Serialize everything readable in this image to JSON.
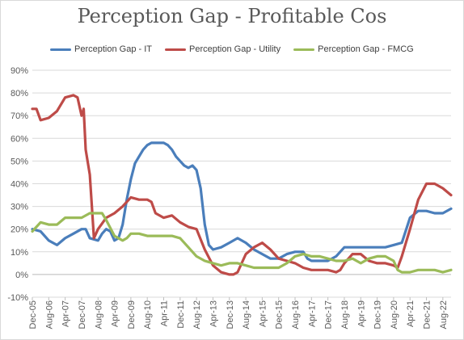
{
  "chart_data": {
    "type": "line",
    "title": "Perception Gap - Profitable Cos",
    "xlabel": "",
    "ylabel": "",
    "ylim": [
      -0.1,
      0.9
    ],
    "y_ticks": [
      "-10%",
      "0%",
      "10%",
      "20%",
      "30%",
      "40%",
      "50%",
      "60%",
      "70%",
      "80%",
      "90%"
    ],
    "x_tick_labels": [
      "Dec-05",
      "Aug-06",
      "Apr-07",
      "Dec-07",
      "Aug-08",
      "Apr-09",
      "Dec-09",
      "Aug-10",
      "Apr-11",
      "Dec-11",
      "Aug-12",
      "Apr-13",
      "Dec-13",
      "Aug-14",
      "Apr-15",
      "Dec-15",
      "Aug-16",
      "Apr-17",
      "Dec-17",
      "Aug-18",
      "Apr-19",
      "Dec-19",
      "Aug-20",
      "Apr-21",
      "Dec-21",
      "Aug-22"
    ],
    "grid": true,
    "legend_position": "top",
    "series": [
      {
        "name": "Perception Gap - IT",
        "color": "#4a7ebb",
        "points": [
          [
            "Dec-05",
            0.2
          ],
          [
            "Apr-06",
            0.19
          ],
          [
            "Aug-06",
            0.15
          ],
          [
            "Dec-06",
            0.13
          ],
          [
            "Apr-07",
            0.16
          ],
          [
            "Aug-07",
            0.18
          ],
          [
            "Dec-07",
            0.2
          ],
          [
            "Feb-08",
            0.2
          ],
          [
            "Apr-08",
            0.16
          ],
          [
            "Aug-08",
            0.15
          ],
          [
            "Oct-08",
            0.18
          ],
          [
            "Dec-08",
            0.2
          ],
          [
            "Feb-09",
            0.19
          ],
          [
            "Apr-09",
            0.15
          ],
          [
            "Jun-09",
            0.16
          ],
          [
            "Aug-09",
            0.22
          ],
          [
            "Oct-09",
            0.33
          ],
          [
            "Dec-09",
            0.42
          ],
          [
            "Feb-10",
            0.49
          ],
          [
            "Apr-10",
            0.52
          ],
          [
            "Jun-10",
            0.55
          ],
          [
            "Aug-10",
            0.57
          ],
          [
            "Oct-10",
            0.58
          ],
          [
            "Dec-10",
            0.58
          ],
          [
            "Apr-11",
            0.58
          ],
          [
            "Jun-11",
            0.57
          ],
          [
            "Aug-11",
            0.55
          ],
          [
            "Oct-11",
            0.52
          ],
          [
            "Dec-11",
            0.5
          ],
          [
            "Feb-12",
            0.48
          ],
          [
            "Apr-12",
            0.47
          ],
          [
            "Jun-12",
            0.48
          ],
          [
            "Aug-12",
            0.46
          ],
          [
            "Oct-12",
            0.38
          ],
          [
            "Dec-12",
            0.22
          ],
          [
            "Feb-13",
            0.13
          ],
          [
            "Apr-13",
            0.11
          ],
          [
            "Aug-13",
            0.12
          ],
          [
            "Dec-13",
            0.14
          ],
          [
            "Apr-14",
            0.16
          ],
          [
            "Aug-14",
            0.14
          ],
          [
            "Dec-14",
            0.11
          ],
          [
            "Apr-15",
            0.09
          ],
          [
            "Aug-15",
            0.07
          ],
          [
            "Dec-15",
            0.07
          ],
          [
            "Apr-16",
            0.09
          ],
          [
            "Aug-16",
            0.1
          ],
          [
            "Dec-16",
            0.1
          ],
          [
            "Feb-17",
            0.07
          ],
          [
            "Apr-17",
            0.06
          ],
          [
            "Aug-17",
            0.06
          ],
          [
            "Dec-17",
            0.06
          ],
          [
            "Apr-18",
            0.08
          ],
          [
            "Aug-18",
            0.12
          ],
          [
            "Dec-18",
            0.12
          ],
          [
            "Apr-19",
            0.12
          ],
          [
            "Aug-19",
            0.12
          ],
          [
            "Dec-19",
            0.12
          ],
          [
            "Apr-20",
            0.12
          ],
          [
            "Aug-20",
            0.13
          ],
          [
            "Dec-20",
            0.14
          ],
          [
            "Apr-21",
            0.25
          ],
          [
            "Aug-21",
            0.28
          ],
          [
            "Dec-21",
            0.28
          ],
          [
            "Apr-22",
            0.27
          ],
          [
            "Aug-22",
            0.27
          ],
          [
            "Dec-22",
            0.29
          ]
        ]
      },
      {
        "name": "Perception Gap - Utility",
        "color": "#be4b48",
        "points": [
          [
            "Dec-05",
            0.73
          ],
          [
            "Feb-06",
            0.73
          ],
          [
            "Apr-06",
            0.68
          ],
          [
            "Aug-06",
            0.69
          ],
          [
            "Dec-06",
            0.72
          ],
          [
            "Apr-07",
            0.78
          ],
          [
            "Aug-07",
            0.79
          ],
          [
            "Oct-07",
            0.78
          ],
          [
            "Dec-07",
            0.7
          ],
          [
            "Jan-08",
            0.73
          ],
          [
            "Feb-08",
            0.55
          ],
          [
            "Apr-08",
            0.44
          ],
          [
            "Jun-08",
            0.16
          ],
          [
            "Aug-08",
            0.2
          ],
          [
            "Dec-08",
            0.25
          ],
          [
            "Apr-09",
            0.27
          ],
          [
            "Aug-09",
            0.3
          ],
          [
            "Dec-09",
            0.34
          ],
          [
            "Apr-10",
            0.33
          ],
          [
            "Aug-10",
            0.33
          ],
          [
            "Oct-10",
            0.32
          ],
          [
            "Dec-10",
            0.27
          ],
          [
            "Apr-11",
            0.25
          ],
          [
            "Aug-11",
            0.26
          ],
          [
            "Dec-11",
            0.23
          ],
          [
            "Apr-12",
            0.21
          ],
          [
            "Aug-12",
            0.2
          ],
          [
            "Dec-12",
            0.11
          ],
          [
            "Apr-13",
            0.04
          ],
          [
            "Aug-13",
            0.01
          ],
          [
            "Dec-13",
            0.0
          ],
          [
            "Feb-14",
            0.0
          ],
          [
            "Apr-14",
            0.01
          ],
          [
            "Aug-14",
            0.09
          ],
          [
            "Dec-14",
            0.12
          ],
          [
            "Apr-15",
            0.14
          ],
          [
            "Aug-15",
            0.11
          ],
          [
            "Dec-15",
            0.07
          ],
          [
            "Apr-16",
            0.06
          ],
          [
            "Aug-16",
            0.05
          ],
          [
            "Dec-16",
            0.03
          ],
          [
            "Apr-17",
            0.02
          ],
          [
            "Aug-17",
            0.02
          ],
          [
            "Dec-17",
            0.02
          ],
          [
            "Apr-18",
            0.01
          ],
          [
            "Jun-18",
            0.02
          ],
          [
            "Aug-18",
            0.05
          ],
          [
            "Dec-18",
            0.09
          ],
          [
            "Apr-19",
            0.09
          ],
          [
            "Aug-19",
            0.06
          ],
          [
            "Dec-19",
            0.05
          ],
          [
            "Apr-20",
            0.05
          ],
          [
            "Aug-20",
            0.04
          ],
          [
            "Oct-20",
            0.03
          ],
          [
            "Dec-20",
            0.08
          ],
          [
            "Apr-21",
            0.2
          ],
          [
            "Aug-21",
            0.33
          ],
          [
            "Dec-21",
            0.4
          ],
          [
            "Apr-22",
            0.4
          ],
          [
            "Aug-22",
            0.38
          ],
          [
            "Dec-22",
            0.35
          ]
        ]
      },
      {
        "name": "Perception Gap - FMCG",
        "color": "#9bbb59",
        "points": [
          [
            "Dec-05",
            0.19
          ],
          [
            "Apr-06",
            0.23
          ],
          [
            "Aug-06",
            0.22
          ],
          [
            "Dec-06",
            0.22
          ],
          [
            "Apr-07",
            0.25
          ],
          [
            "Aug-07",
            0.25
          ],
          [
            "Dec-07",
            0.25
          ],
          [
            "Apr-08",
            0.27
          ],
          [
            "Aug-08",
            0.27
          ],
          [
            "Oct-08",
            0.27
          ],
          [
            "Dec-08",
            0.24
          ],
          [
            "Apr-09",
            0.17
          ],
          [
            "Aug-09",
            0.15
          ],
          [
            "Oct-09",
            0.16
          ],
          [
            "Dec-09",
            0.18
          ],
          [
            "Apr-10",
            0.18
          ],
          [
            "Aug-10",
            0.17
          ],
          [
            "Dec-10",
            0.17
          ],
          [
            "Apr-11",
            0.17
          ],
          [
            "Aug-11",
            0.17
          ],
          [
            "Dec-11",
            0.16
          ],
          [
            "Apr-12",
            0.12
          ],
          [
            "Aug-12",
            0.08
          ],
          [
            "Dec-12",
            0.06
          ],
          [
            "Apr-13",
            0.05
          ],
          [
            "Aug-13",
            0.04
          ],
          [
            "Dec-13",
            0.05
          ],
          [
            "Apr-14",
            0.05
          ],
          [
            "Aug-14",
            0.04
          ],
          [
            "Dec-14",
            0.03
          ],
          [
            "Apr-15",
            0.03
          ],
          [
            "Aug-15",
            0.03
          ],
          [
            "Dec-15",
            0.03
          ],
          [
            "Apr-16",
            0.05
          ],
          [
            "Aug-16",
            0.08
          ],
          [
            "Dec-16",
            0.09
          ],
          [
            "Apr-17",
            0.08
          ],
          [
            "Aug-17",
            0.08
          ],
          [
            "Dec-17",
            0.07
          ],
          [
            "Apr-18",
            0.06
          ],
          [
            "Aug-18",
            0.06
          ],
          [
            "Dec-18",
            0.07
          ],
          [
            "Apr-19",
            0.05
          ],
          [
            "Aug-19",
            0.07
          ],
          [
            "Dec-19",
            0.08
          ],
          [
            "Apr-20",
            0.08
          ],
          [
            "Aug-20",
            0.06
          ],
          [
            "Oct-20",
            0.02
          ],
          [
            "Dec-20",
            0.01
          ],
          [
            "Apr-21",
            0.01
          ],
          [
            "Aug-21",
            0.02
          ],
          [
            "Dec-21",
            0.02
          ],
          [
            "Apr-22",
            0.02
          ],
          [
            "Aug-22",
            0.01
          ],
          [
            "Dec-22",
            0.02
          ]
        ]
      }
    ]
  }
}
